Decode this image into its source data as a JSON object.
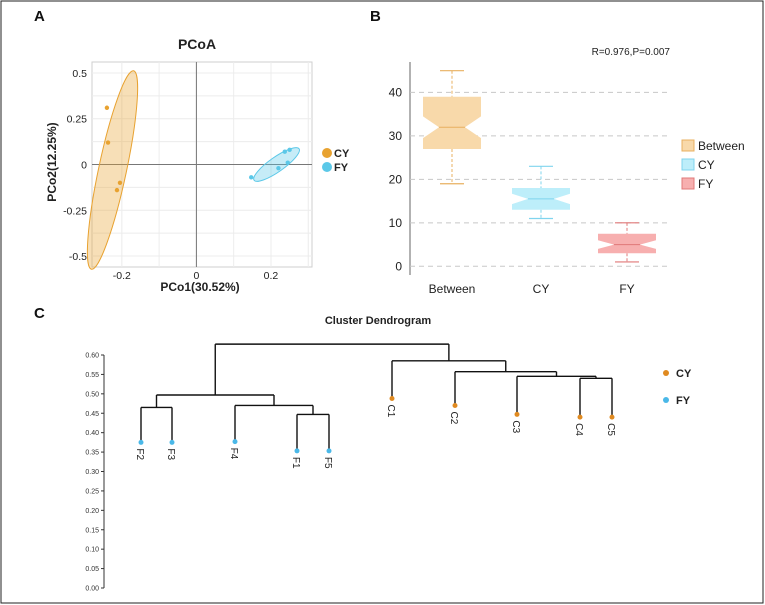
{
  "figure": {
    "panel_letters": [
      "A",
      "B",
      "C"
    ]
  },
  "chart_data": [
    {
      "id": "pcoa",
      "type": "scatter",
      "title": "PCoA",
      "xlabel": "PCo1(30.52%)",
      "ylabel": "PCo2(12.25%)",
      "xlim": [
        -0.28,
        0.31
      ],
      "ylim": [
        -0.56,
        0.56
      ],
      "x_ticks": [
        -0.2,
        0,
        0.2
      ],
      "x_tick_labels": [
        "-0.2",
        "0",
        "0.2"
      ],
      "y_ticks": [
        0.5,
        0.25,
        0,
        -0.25,
        -0.5
      ],
      "y_tick_labels": [
        "0.5",
        "0.25",
        "0",
        "-0.25",
        "-0.5"
      ],
      "grid": true,
      "legend_position": "right",
      "series": [
        {
          "name": "CY",
          "color": "#E8A230",
          "points": [
            {
              "x": -0.24,
              "y": 0.31
            },
            {
              "x": -0.237,
              "y": 0.12
            },
            {
              "x": -0.205,
              "y": -0.1
            },
            {
              "x": -0.213,
              "y": -0.14
            }
          ],
          "ellipse": {
            "cx": -0.225,
            "cy": -0.03,
            "rx": 0.52,
            "ry": 0.038,
            "angle_deg": -78
          }
        },
        {
          "name": "FY",
          "color": "#5BC8E8",
          "points": [
            {
              "x": 0.147,
              "y": -0.07
            },
            {
              "x": 0.22,
              "y": -0.02
            },
            {
              "x": 0.245,
              "y": 0.01
            },
            {
              "x": 0.237,
              "y": 0.07
            },
            {
              "x": 0.25,
              "y": 0.08
            }
          ],
          "ellipse": {
            "cx": 0.215,
            "cy": 0.0,
            "rx": 0.085,
            "ry": 0.028,
            "angle_deg": -35
          }
        }
      ]
    },
    {
      "id": "boxplot",
      "type": "box",
      "annotation": "R=0.976,P=0.007",
      "categories": [
        "Between",
        "CY",
        "FY"
      ],
      "ylim": [
        -2,
        47
      ],
      "y_ticks": [
        0,
        10,
        20,
        30,
        40
      ],
      "y_tick_labels": [
        "0",
        "10",
        "20",
        "30",
        "40"
      ],
      "grid": "dashed-horizontal",
      "legend_position": "right",
      "series": [
        {
          "name": "Between",
          "fill": "#F8D9AA",
          "stroke": "#E8B060",
          "min": 19,
          "q1": 27,
          "median": 32,
          "q3": 39,
          "max": 45,
          "notch_low": 29.5,
          "notch_high": 34.5
        },
        {
          "name": "CY",
          "fill": "#BDEEFA",
          "stroke": "#80D4EE",
          "min": 11,
          "q1": 13,
          "median": 15.5,
          "q3": 18,
          "max": 23,
          "notch_low": 14.3,
          "notch_high": 16.7
        },
        {
          "name": "FY",
          "fill": "#F7AFAF",
          "stroke": "#E07878",
          "min": 1,
          "q1": 3,
          "median": 5,
          "q3": 7.5,
          "max": 10,
          "notch_low": 4,
          "notch_high": 6
        }
      ]
    },
    {
      "id": "dendrogram",
      "type": "dendrogram",
      "title": "Cluster Dendrogram",
      "ylim": [
        0,
        0.62
      ],
      "y_ticks": [
        0.6,
        0.55,
        0.5,
        0.45,
        0.4,
        0.35,
        0.3,
        0.25,
        0.2,
        0.15,
        0.1,
        0.05,
        0.0
      ],
      "y_tick_labels": [
        "0.60",
        "0.55",
        "0.50",
        "0.45",
        "0.40",
        "0.35",
        "0.30",
        "0.25",
        "0.20",
        "0.15",
        "0.10",
        "0.05",
        "0.00"
      ],
      "legend_position": "right",
      "groups": [
        {
          "name": "CY",
          "color": "#E08A20"
        },
        {
          "name": "FY",
          "color": "#4AB8E8"
        }
      ],
      "leaves": [
        {
          "name": "F2",
          "group": "FY",
          "height": 0.375
        },
        {
          "name": "F3",
          "group": "FY",
          "height": 0.375
        },
        {
          "name": "F4",
          "group": "FY",
          "height": 0.377
        },
        {
          "name": "F1",
          "group": "FY",
          "height": 0.353
        },
        {
          "name": "F5",
          "group": "FY",
          "height": 0.353
        },
        {
          "name": "C1",
          "group": "CY",
          "height": 0.488
        },
        {
          "name": "C2",
          "group": "CY",
          "height": 0.47
        },
        {
          "name": "C3",
          "group": "CY",
          "height": 0.447
        },
        {
          "name": "C4",
          "group": "CY",
          "height": 0.44
        },
        {
          "name": "C5",
          "group": "CY",
          "height": 0.44
        }
      ],
      "merges": [
        {
          "left": "F2",
          "right": "F3",
          "height": 0.465
        },
        {
          "left": "F1",
          "right": "F5",
          "height": 0.447
        },
        {
          "left": "F4",
          "right": "m2",
          "height": 0.47
        },
        {
          "left": "m1",
          "right": "m3",
          "height": 0.497
        },
        {
          "left": "C4",
          "right": "C5",
          "height": 0.54
        },
        {
          "left": "C3",
          "right": "m5",
          "height": 0.545
        },
        {
          "left": "C2",
          "right": "m6",
          "height": 0.557
        },
        {
          "left": "C1",
          "right": "m7",
          "height": 0.585
        },
        {
          "left": "m4",
          "right": "m8",
          "height": 0.628
        }
      ]
    }
  ]
}
